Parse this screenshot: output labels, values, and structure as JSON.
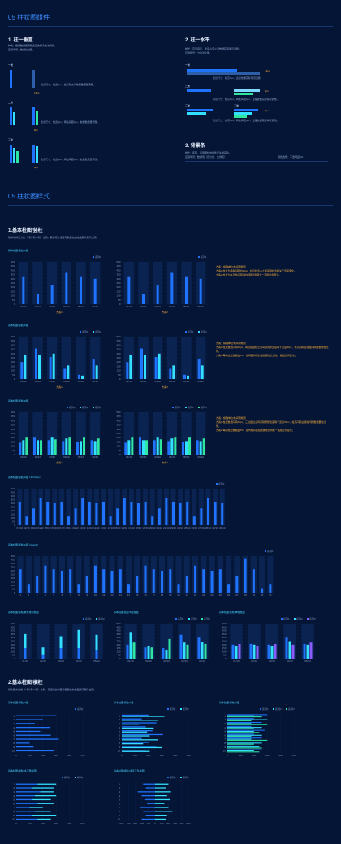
{
  "section1": {
    "title": "05 柱状图组件"
  },
  "vertical": {
    "title": "1. 柱一垂直",
    "desc1": "样式：根据数据量调整宽度的整齐依次横排。",
    "desc2": "应用场景：数据比较图。",
    "groups": [
      {
        "label": "一类",
        "caption": "建议尺寸：柱宽3px，坐标轴之间依照数据量调整。",
        "value": "13px"
      },
      {
        "label": "二类",
        "caption": "建议尺寸：柱宽3px，两柱间距1px，依据数据量调整。",
        "value": "8px"
      },
      {
        "label": "三类",
        "caption": "建议尺寸：柱宽3px，两柱间距1px，依据数据量调整。",
        "value": "8px"
      }
    ]
  },
  "horizontal": {
    "title": "2. 柱一水平",
    "desc1": "样式：高度固定，宽度占至少对数据获取展示调整。",
    "desc2": "应用场景：分类对比图。",
    "groups": [
      {
        "label": "一类",
        "caption": "建议尺寸：柱高3px，宽度依据实际情况调整。",
        "value": "13px"
      },
      {
        "label": "二类",
        "caption": "建议尺寸：柱高3px，两柱间距1px，宽度依据实际情况调整。",
        "value": "8px"
      },
      {
        "label": "三类",
        "label2": "三类",
        "caption": "建议尺寸：柱高3px，两柱间距1px，宽度依据实际情况调整。",
        "value": "8px"
      }
    ]
  },
  "background": {
    "title": "3. 背景条",
    "desc1": "样式：底部、底部图柱的组件至先用其色。",
    "desc2": "应用场景：数据值（百分比、比例值）。",
    "note": "颜色透明：不透明度5%"
  },
  "section2": {
    "title": "05 柱状图样式"
  },
  "basic_vertical": {
    "title": "1.基本柱图/竖柱",
    "desc": "简单地将至分类（1到7到12到）比例。其多项分组量可能能在的柱图展示展示出现。"
  },
  "basic_horizontal": {
    "title": "2.基本柱图/横柱",
    "desc": "横条图水分类（1到7到12到）比例。包括双比例量可能能在的柱图展示展示出现。"
  },
  "legend": {
    "s1": "■ 系列1",
    "s2": "■ 系列2",
    "s3": "■ 系列3"
  },
  "annotations": {
    "a1": [
      "方案：横轴单位/柱间隔规则",
      "方案1:柱宽为横轴间隔的20px，柱与柱宽占之间间隔柱宽相关于宽度变化。",
      "方案2:柱宽为柱与柱间距间的间隔比例变化一都随比例变化。"
    ],
    "a2": [
      "方案：横轴单位/柱间隔规则",
      "方案1:柱宽数据间隔20px，两柱组由柱之间间隔调整宽度等于宽度30px，柱高间隔主组柱间隔数据要柱比例。",
      "方案2:每组柱宽数据由5%，柱间距排列的组数据依比例柱一般组比例变化。"
    ],
    "a3": [
      "方案：横轴单位/柱间隔规则",
      "方案1:柱宽数据间隔20px，三柱组柱之间间隔调整宽度等于宽度30px，柱高间隔主组柱间隔数据要柱比例。",
      "方案2:每组柱宽数据由5%，组内柱间距组数据依比例柱一般组比例变化。"
    ]
  },
  "chart_data": [
    {
      "label": "基本柱图/竖柱/1组",
      "type": "bar",
      "categories": [
        "01/10",
        "02/10",
        "03/10",
        "04/10",
        "05/10",
        "06/10"
      ],
      "ylim": [
        0,
        500
      ],
      "yticks": [
        "0",
        "50",
        "100",
        "150",
        "200",
        "250",
        "300",
        "350",
        "400",
        "450",
        "500"
      ],
      "series": [
        {
          "name": "系列1",
          "values": [
            320,
            120,
            230,
            370,
            320,
            300
          ]
        }
      ],
      "xlabel": "方案1"
    },
    {
      "label": "",
      "type": "bar",
      "categories": [
        "01/10",
        "02/10",
        "03/10",
        "04/10",
        "05/10",
        "06/10"
      ],
      "ylim": [
        0,
        500
      ],
      "yticks": [
        "0",
        "50",
        "100",
        "150",
        "200",
        "250",
        "300",
        "350",
        "400",
        "450",
        "500"
      ],
      "series": [
        {
          "name": "系列1",
          "values": [
            320,
            120,
            230,
            370,
            320,
            300
          ]
        }
      ],
      "xlabel": "方案2"
    },
    {
      "label": "基本柱图/竖柱/2组",
      "type": "bar",
      "categories": [
        "01/10",
        "02/10",
        "03/10",
        "04/10",
        "05/10",
        "06/10"
      ],
      "ylim": [
        0,
        500
      ],
      "yticks": [
        "0",
        "50",
        "100",
        "150",
        "200",
        "250",
        "300",
        "350",
        "400",
        "450",
        "500"
      ],
      "series": [
        {
          "name": "系列1",
          "values": [
            200,
            360,
            260,
            120,
            50,
            230
          ]
        },
        {
          "name": "系列2",
          "values": [
            280,
            280,
            300,
            160,
            40,
            160
          ]
        }
      ],
      "xlabel": "方案1"
    },
    {
      "label": "",
      "type": "bar",
      "categories": [
        "01/10",
        "02/10",
        "03/10",
        "04/10",
        "05/10",
        "06/10"
      ],
      "ylim": [
        0,
        500
      ],
      "yticks": [
        "0",
        "50",
        "100",
        "150",
        "200",
        "250",
        "300",
        "350",
        "400",
        "450",
        "500"
      ],
      "series": [
        {
          "name": "系列1",
          "values": [
            200,
            360,
            260,
            120,
            50,
            230
          ]
        },
        {
          "name": "系列2",
          "values": [
            280,
            280,
            300,
            160,
            40,
            160
          ]
        }
      ],
      "xlabel": "方案2"
    },
    {
      "label": "基本柱图/竖柱/3组",
      "type": "bar",
      "categories": [
        "01/10",
        "02/10",
        "03/10",
        "04/10",
        "05/10",
        "06/10"
      ],
      "ylim": [
        0,
        500
      ],
      "yticks": [
        "0",
        "50",
        "100",
        "150",
        "200",
        "250",
        "300",
        "350",
        "400",
        "450",
        "500"
      ],
      "series": [
        {
          "name": "系列1",
          "values": [
            140,
            200,
            170,
            160,
            150,
            170
          ]
        },
        {
          "name": "系列2",
          "values": [
            170,
            170,
            200,
            190,
            160,
            160
          ]
        },
        {
          "name": "系列3",
          "values": [
            200,
            170,
            180,
            200,
            200,
            190
          ]
        }
      ],
      "xlabel": "方案1"
    },
    {
      "label": "",
      "type": "bar",
      "categories": [
        "01/10",
        "02/10",
        "03/10",
        "04/10",
        "05/10",
        "06/10"
      ],
      "ylim": [
        0,
        500
      ],
      "yticks": [
        "0",
        "50",
        "100",
        "150",
        "200",
        "250",
        "300",
        "350",
        "400",
        "450",
        "500"
      ],
      "series": [
        {
          "name": "系列1",
          "values": [
            140,
            200,
            170,
            160,
            150,
            170
          ]
        },
        {
          "name": "系列2",
          "values": [
            170,
            170,
            200,
            190,
            160,
            160
          ]
        },
        {
          "name": "系列3",
          "values": [
            200,
            170,
            180,
            200,
            200,
            190
          ]
        }
      ],
      "xlabel": "方案2"
    },
    {
      "label": "基本柱图/竖柱/1组（30 Days）",
      "type": "bar",
      "categories": [
        "01/10",
        "02/10",
        "03/10",
        "04/10",
        "05/10",
        "06/10",
        "07/10",
        "08/10",
        "09/10",
        "10/10",
        "11/10",
        "12/10",
        "13/10",
        "14/10",
        "15/10",
        "16/10",
        "17/10",
        "18/10",
        "19/10",
        "20/10",
        "21/10",
        "22/10",
        "23/10",
        "24/10",
        "25/10",
        "26/10",
        "27/10",
        "28/10",
        "29/10",
        "30/10"
      ],
      "ylim": [
        0,
        500
      ],
      "yticks": [
        "0",
        "50",
        "100",
        "150",
        "200",
        "250",
        "300",
        "350",
        "400",
        "450",
        "500"
      ],
      "series": [
        {
          "name": "系列1",
          "values": [
            320,
            120,
            230,
            370,
            320,
            300,
            320,
            120,
            230,
            370,
            320,
            300,
            320,
            120,
            230,
            370,
            320,
            300,
            320,
            120,
            230,
            370,
            320,
            300,
            320,
            120,
            230,
            370,
            320,
            300
          ]
        }
      ]
    },
    {
      "label": "基本柱图/竖柱/1组（Month）",
      "type": "bar",
      "categories": [
        "1",
        "2",
        "3",
        "4",
        "5",
        "6",
        "7",
        "8",
        "9",
        "10",
        "11",
        "12",
        "13",
        "14",
        "15",
        "16",
        "17",
        "18",
        "19",
        "20",
        "21",
        "22",
        "23",
        "24",
        "25",
        "26",
        "27",
        "28",
        "29",
        "30",
        "31"
      ],
      "ylim": [
        0,
        500
      ],
      "yticks": [
        "0",
        "50",
        "100",
        "150",
        "200",
        "250",
        "300",
        "350",
        "400",
        "450",
        "500"
      ],
      "series": [
        {
          "name": "系列1",
          "values": [
            320,
            120,
            230,
            370,
            320,
            300,
            320,
            120,
            230,
            370,
            320,
            300,
            320,
            120,
            230,
            370,
            320,
            300,
            320,
            120,
            230,
            370,
            320,
            300,
            320,
            120,
            230,
            470,
            320,
            60,
            120
          ]
        }
      ]
    },
    {
      "label": "基本柱图/竖柱/累叠量值柱图",
      "type": "bar",
      "categories": [
        "01/10",
        "02/10",
        "03/10",
        "04/10",
        "05/10"
      ],
      "ylim": [
        0,
        500
      ],
      "yticks": [
        "0",
        "50",
        "100",
        "150",
        "200",
        "250",
        "300",
        "350",
        "400",
        "450",
        "500"
      ],
      "series": [
        {
          "name": "系列1",
          "values": [
            150,
            60,
            150,
            150,
            120
          ]
        },
        {
          "name": "系列2",
          "values": [
            200,
            100,
            170,
            260,
            220
          ]
        }
      ]
    },
    {
      "label": "基本柱图/竖柱/3组柱图",
      "type": "bar",
      "categories": [
        "01/10",
        "02/10",
        "03/10",
        "04/10",
        "05/10"
      ],
      "ylim": [
        0,
        500
      ],
      "yticks": [
        "0",
        "50",
        "100",
        "150",
        "200",
        "250",
        "300",
        "350",
        "400",
        "450",
        "500"
      ],
      "series": [
        {
          "name": "系列1",
          "values": [
            200,
            160,
            150,
            340,
            300
          ]
        },
        {
          "name": "系列2",
          "values": [
            380,
            180,
            120,
            230,
            240
          ]
        },
        {
          "name": "系列3",
          "values": [
            230,
            160,
            280,
            200,
            210
          ]
        }
      ]
    },
    {
      "label": "基本柱图/竖柱/单柱柱图",
      "type": "bar",
      "categories": [
        "01/10",
        "02/10",
        "03/10",
        "04/10",
        "05/10"
      ],
      "ylim": [
        0,
        500
      ],
      "yticks": [
        "0",
        "50",
        "100",
        "150",
        "200",
        "250",
        "300",
        "350",
        "400",
        "450",
        "500"
      ],
      "series": [
        {
          "name": "系列1",
          "values": [
            200,
            210,
            200,
            300,
            210
          ]
        },
        {
          "name": "系列2",
          "values": [
            180,
            200,
            180,
            250,
            200
          ]
        },
        {
          "name": "系列3",
          "values": [
            210,
            180,
            210,
            200,
            230
          ]
        }
      ]
    },
    {
      "label": "基本柱图/横柱/1组",
      "type": "bar",
      "orientation": "horizontal",
      "categories": [
        "1",
        "2",
        "3",
        "4",
        "5",
        "6",
        "7",
        "8",
        "9",
        "10"
      ],
      "xlim": [
        0,
        500
      ],
      "xticks": [
        "0",
        "100",
        "200",
        "300",
        "400",
        "500"
      ],
      "series": [
        {
          "name": "系列1",
          "values": [
            300,
            200,
            140,
            250,
            180,
            260,
            320,
            100,
            130,
            280
          ]
        }
      ]
    },
    {
      "label": "基本柱图/横柱/2组",
      "type": "bar",
      "orientation": "horizontal",
      "categories": [
        "1",
        "2",
        "3",
        "4",
        "5",
        "6",
        "7",
        "8",
        "9",
        "10"
      ],
      "xlim": [
        0,
        500
      ],
      "xticks": [
        "0",
        "100",
        "200",
        "300",
        "400",
        "500"
      ],
      "series": [
        {
          "name": "系列1",
          "values": [
            200,
            150,
            260,
            180,
            230,
            310,
            150,
            200,
            260,
            180
          ]
        },
        {
          "name": "系列2",
          "values": [
            320,
            270,
            130,
            240,
            190,
            210,
            270,
            160,
            300,
            210
          ]
        }
      ]
    },
    {
      "label": "基本柱图/横柱/3组",
      "type": "bar",
      "orientation": "horizontal",
      "categories": [
        "1",
        "2",
        "3",
        "4",
        "5",
        "6",
        "7",
        "8",
        "9",
        "10"
      ],
      "xlim": [
        0,
        500
      ],
      "xticks": [
        "0",
        "100",
        "200",
        "300",
        "400",
        "500"
      ],
      "series": [
        {
          "name": "系列1",
          "values": [
            300,
            200,
            260,
            180,
            280,
            200,
            260,
            240,
            180,
            260
          ]
        },
        {
          "name": "系列2",
          "values": [
            200,
            300,
            180,
            260,
            200,
            260,
            180,
            260,
            240,
            200
          ]
        },
        {
          "name": "系列3",
          "values": [
            260,
            180,
            300,
            200,
            240,
            180,
            300,
            200,
            260,
            240
          ]
        }
      ]
    },
    {
      "label": "基本柱图/横柱/水平量柱图",
      "type": "bar",
      "orientation": "horizontal",
      "stacked": true,
      "categories": [
        "1",
        "2",
        "3",
        "4",
        "5",
        "6",
        "7",
        "8",
        "9",
        "10"
      ],
      "xlim": [
        0,
        500
      ],
      "xticks": [
        "0",
        "100",
        "200",
        "300",
        "400",
        "500"
      ],
      "series": [
        {
          "name": "系列1",
          "values": [
            160,
            120,
            180,
            140,
            120,
            160,
            100,
            140,
            120,
            160
          ]
        },
        {
          "name": "系列2",
          "values": [
            140,
            160,
            100,
            160,
            140,
            120,
            100,
            120,
            180,
            100
          ]
        }
      ]
    },
    {
      "label": "基本柱图/横柱/水平正负柱图",
      "type": "bar",
      "orientation": "horizontal",
      "diverging": true,
      "categories": [
        "1",
        "2",
        "3",
        "4",
        "5",
        "6",
        "7",
        "8",
        "9",
        "10"
      ],
      "xlim": [
        -500,
        500
      ],
      "xticks": [
        "500",
        "400",
        "300",
        "200",
        "100",
        "0",
        "100",
        "200",
        "300",
        "400",
        "500"
      ],
      "series": [
        {
          "name": "系列1",
          "values": [
            -180,
            -140,
            -260,
            -200,
            -160,
            -120,
            -220,
            -180,
            -140,
            -200
          ]
        },
        {
          "name": "系列2",
          "values": [
            200,
            160,
            240,
            180,
            220,
            140,
            200,
            260,
            180,
            160
          ]
        }
      ]
    }
  ],
  "swatches": {
    "xlabel1": "方案1",
    "xlabel2": "方案2"
  },
  "colors": {
    "bg": "#041536",
    "blue": "#1f73ff",
    "cyan": "#34e0ff",
    "green": "#2ee6a0",
    "purple": "#8a5cff",
    "line": "#17386e",
    "accent": "#3d8dff"
  }
}
